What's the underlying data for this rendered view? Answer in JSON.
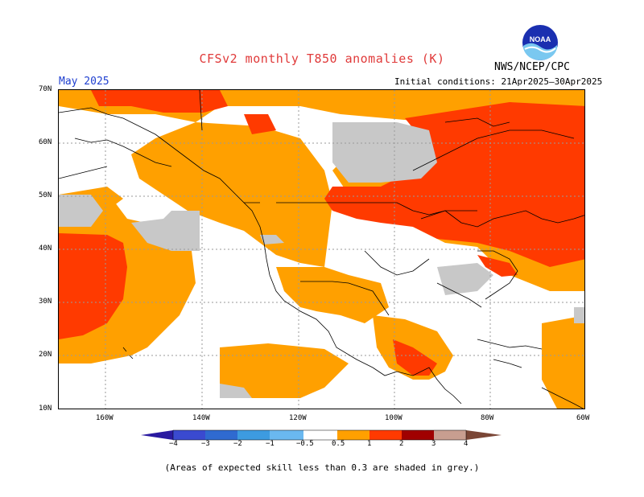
{
  "title": "CFSv2 monthly T850 anomalies (K)",
  "agency": "NWS/NCEP/CPC",
  "logo_text": "NOAA",
  "month_label": "May 2025",
  "initial_conditions": "Initial conditions: 21Apr2025–30Apr2025",
  "lat_labels": [
    "70N",
    "60N",
    "50N",
    "40N",
    "30N",
    "20N",
    "10N"
  ],
  "lon_labels": [
    "160W",
    "140W",
    "120W",
    "100W",
    "80W",
    "60W"
  ],
  "colorbar_labels": [
    "−4",
    "−3",
    "−2",
    "−1",
    "−0.5",
    "0.5",
    "1",
    "2",
    "3",
    "4"
  ],
  "colorbar_colors": [
    "#2a1aa0",
    "#3a4ad0",
    "#2f6ad0",
    "#3d9be0",
    "#6ab8f0",
    "#ffffff",
    "#ffa000",
    "#ff3a00",
    "#e01818",
    "#a00000",
    "#c89e90",
    "#7a4636"
  ],
  "footnote": "(Areas of expected skill less than 0.3 are shaded in grey.)",
  "legend_colors": {
    "orange": "#ffa000",
    "red_orange": "#ff3a00",
    "grey": "#c8c8c8"
  }
}
